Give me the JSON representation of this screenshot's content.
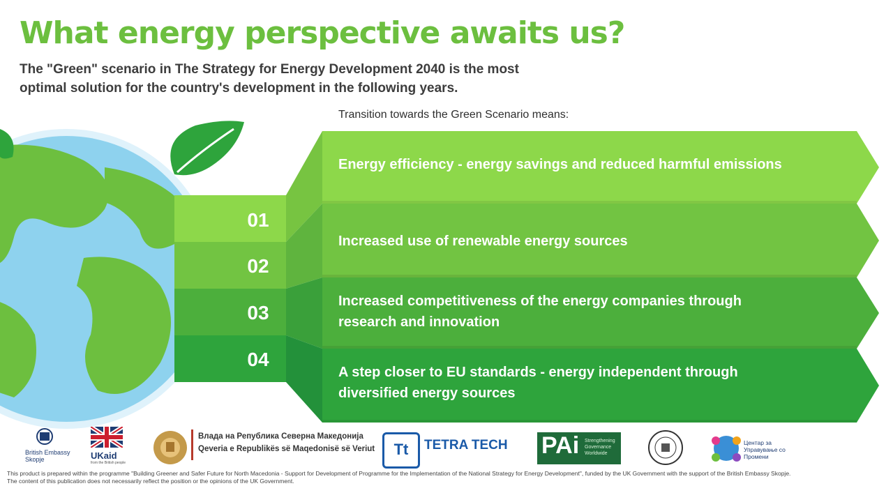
{
  "title": "What energy perspective awaits us?",
  "subtitle": "The \"Green\" scenario in The Strategy for Energy Development 2040 is the most optimal solution for the country's development in the following years.",
  "lead": "Transition towards the Green Scenario means:",
  "items": [
    {
      "num": "01",
      "text": "Energy efficiency - energy savings and reduced harmful emissions",
      "color": "#8dd84a"
    },
    {
      "num": "02",
      "text": "Increased use of renewable energy sources",
      "color": "#72c442"
    },
    {
      "num": "03",
      "text": "Increased competitiveness of the energy companies through research and innovation",
      "color": "#4caf3c"
    },
    {
      "num": "04",
      "text": "A step closer to EU standards - energy independent through diversified energy sources",
      "color": "#2ea43c"
    }
  ],
  "logos": {
    "british_embassy": "British Embassy Skopje",
    "ukaid": "UKaid",
    "ukaid_sub": "from the British people",
    "gov_mk": "Влада на Република Северна Македонија",
    "gov_sq": "Qeveria e Republikës së Maqedonisë së Veriut",
    "tetra_tech": "TETRA TECH",
    "pai": "PAi",
    "pai_sub": "Strengthening Governance Worldwide",
    "cup": "Центар за Управување со Промени"
  },
  "footer": [
    "This product is prepared within the programme \"Building Greener and Safer Future for North Macedonia - Support for Development of Programme for the Implementation of the National Strategy for Energy Development\", funded by the UK Government with the support of the British Embassy Skopje.",
    "The content of this publication does not necessarily reflect the position or the opinions of the UK Government."
  ],
  "colors": {
    "title": "#6cbf3f",
    "ocean": "#8ed2ee",
    "land": "#6dbf3f",
    "leaf": "#2ea43c"
  }
}
